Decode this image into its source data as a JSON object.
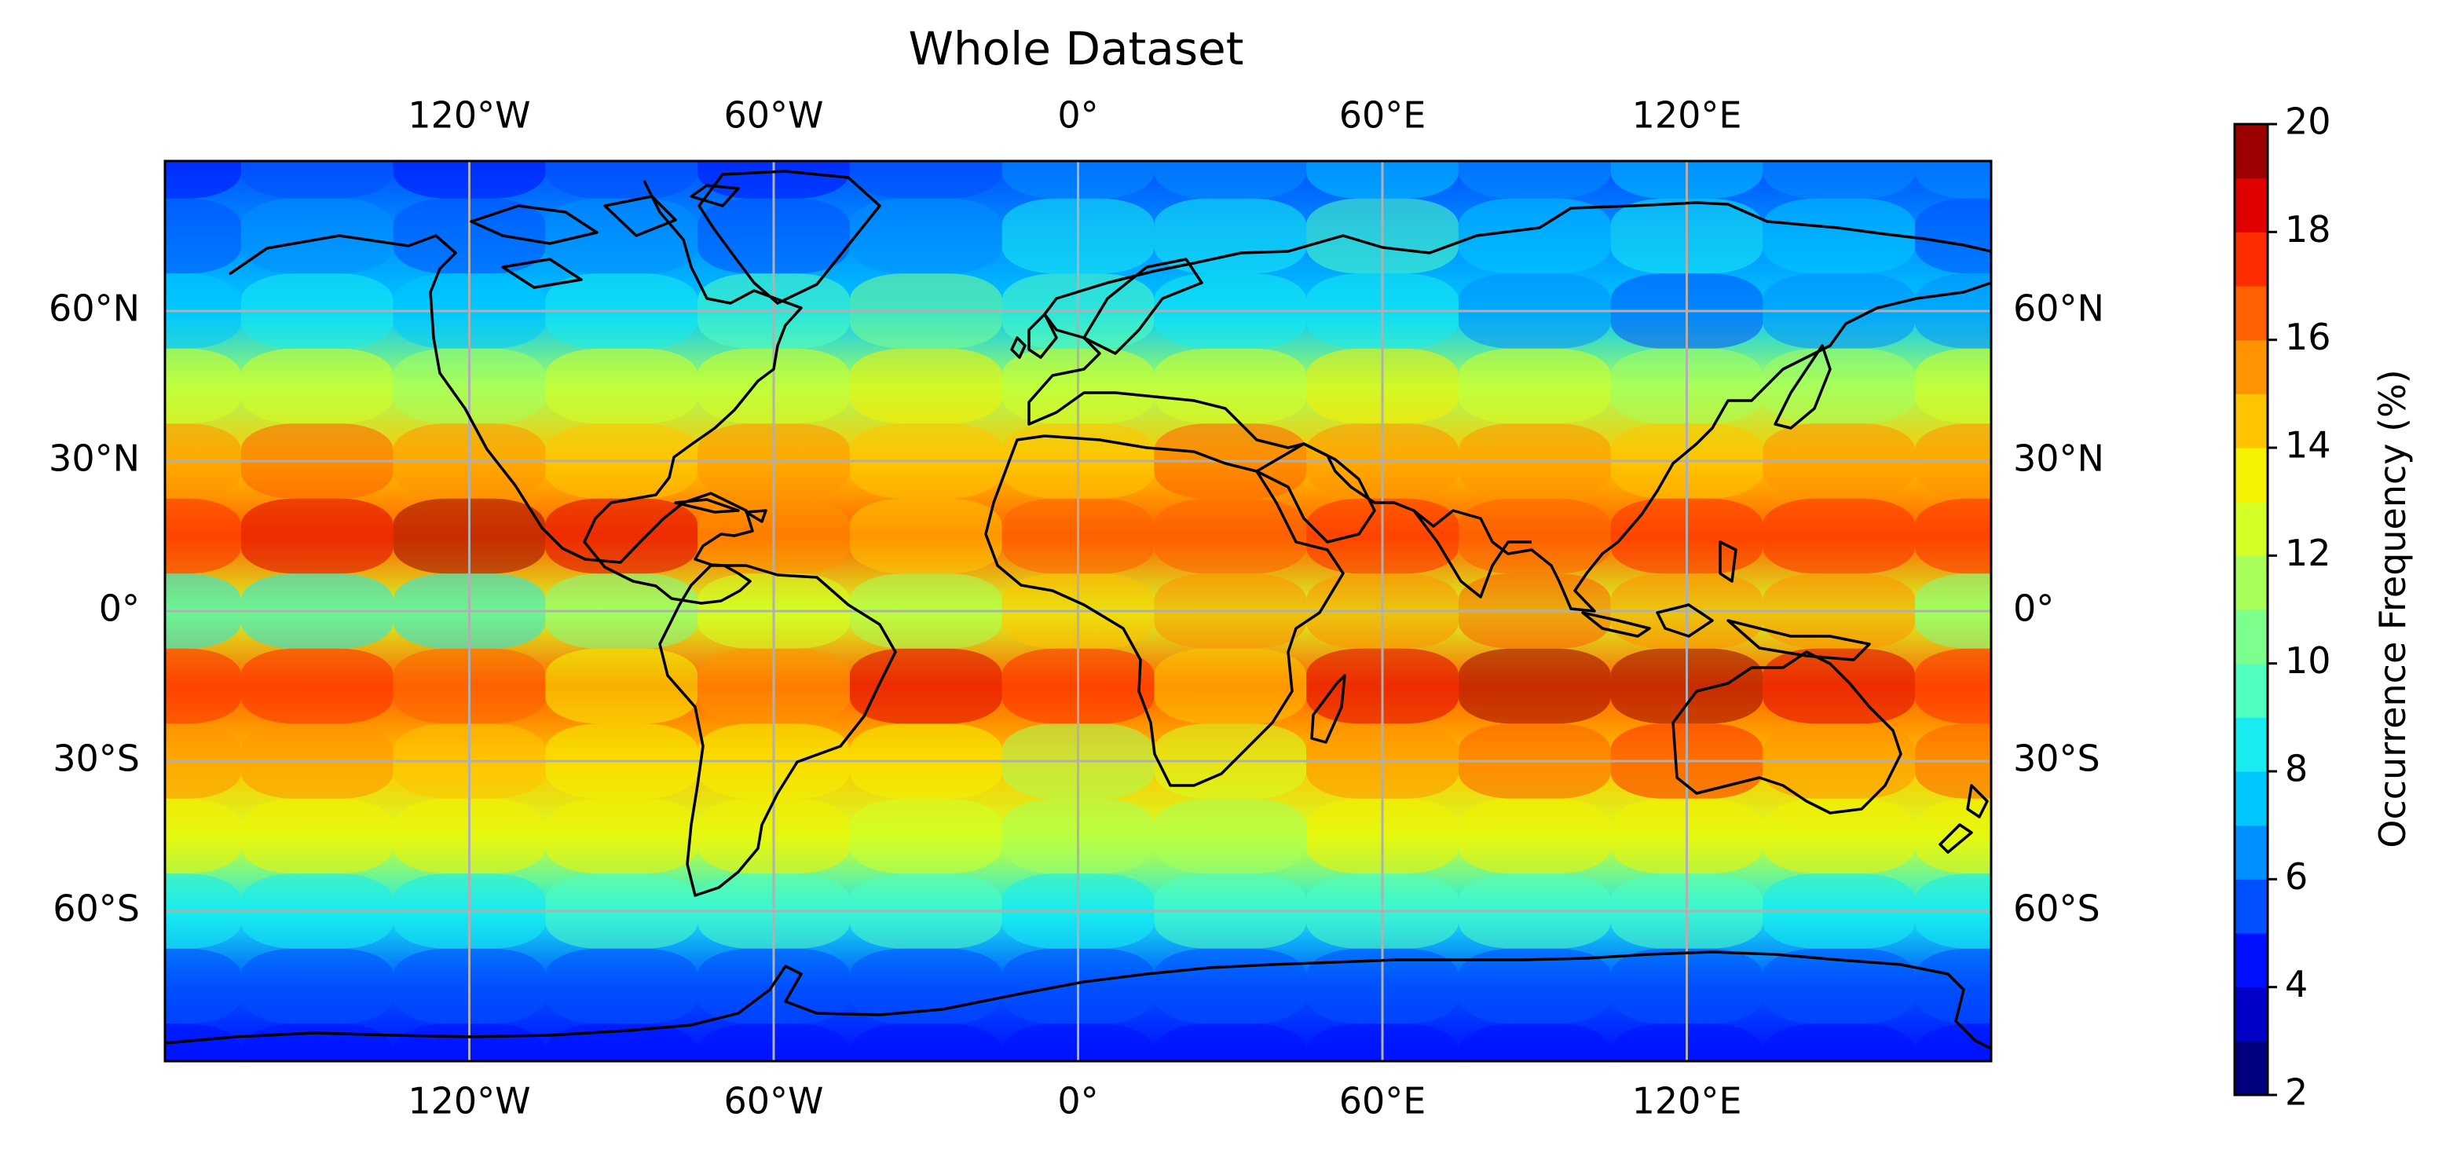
{
  "title": "Whole Dataset",
  "map": {
    "projection": "equirectangular",
    "lon_range": [
      -180,
      180
    ],
    "lat_range": [
      -90,
      90
    ],
    "gridlines": true,
    "gridline_color": "#b0b0b0",
    "coastline_color": "#000000"
  },
  "x_ticks": [
    {
      "value": -120,
      "label": "120°W"
    },
    {
      "value": -60,
      "label": "60°W"
    },
    {
      "value": 0,
      "label": "0°"
    },
    {
      "value": 60,
      "label": "60°E"
    },
    {
      "value": 120,
      "label": "120°E"
    }
  ],
  "y_ticks": [
    {
      "value": 60,
      "label": "60°N"
    },
    {
      "value": 30,
      "label": "30°N"
    },
    {
      "value": 0,
      "label": "0°"
    },
    {
      "value": -30,
      "label": "30°S"
    },
    {
      "value": -60,
      "label": "60°S"
    }
  ],
  "colorbar": {
    "label": "Occurrence Frequency (%)",
    "ticks": [
      "2",
      "4",
      "6",
      "8",
      "10",
      "12",
      "14",
      "16",
      "18",
      "20"
    ],
    "range": [
      2,
      20
    ],
    "levels": [
      {
        "from": 2,
        "to": 3,
        "color": "#00007f"
      },
      {
        "from": 3,
        "to": 4,
        "color": "#0000c8"
      },
      {
        "from": 4,
        "to": 5,
        "color": "#0010ff"
      },
      {
        "from": 5,
        "to": 6,
        "color": "#0050ff"
      },
      {
        "from": 6,
        "to": 7,
        "color": "#0090ff"
      },
      {
        "from": 7,
        "to": 8,
        "color": "#00c8ff"
      },
      {
        "from": 8,
        "to": 9,
        "color": "#18ecf0"
      },
      {
        "from": 9,
        "to": 10,
        "color": "#50ffc0"
      },
      {
        "from": 10,
        "to": 11,
        "color": "#7cff8c"
      },
      {
        "from": 11,
        "to": 12,
        "color": "#a8ff5a"
      },
      {
        "from": 12,
        "to": 13,
        "color": "#d4ff24"
      },
      {
        "from": 13,
        "to": 14,
        "color": "#f4f200"
      },
      {
        "from": 14,
        "to": 15,
        "color": "#ffc400"
      },
      {
        "from": 15,
        "to": 16,
        "color": "#ff9400"
      },
      {
        "from": 16,
        "to": 17,
        "color": "#ff6000"
      },
      {
        "from": 17,
        "to": 18,
        "color": "#ff2c00"
      },
      {
        "from": 18,
        "to": 19,
        "color": "#e00000"
      },
      {
        "from": 19,
        "to": 20,
        "color": "#9c0000"
      }
    ]
  },
  "chart_data": {
    "type": "heatmap",
    "title": "Whole Dataset",
    "x": [
      -180,
      -150,
      -120,
      -90,
      -60,
      -30,
      0,
      30,
      60,
      90,
      120,
      150,
      180
    ],
    "y": [
      90,
      75,
      60,
      45,
      30,
      15,
      0,
      -15,
      -30,
      -45,
      -60,
      -75,
      -90
    ],
    "z": [
      [
        4,
        5,
        4,
        5,
        4,
        5,
        6,
        6,
        7,
        6,
        7,
        6,
        6
      ],
      [
        5,
        6,
        5,
        6,
        5,
        6,
        8,
        8,
        9,
        7,
        8,
        7,
        5
      ],
      [
        7,
        8,
        7,
        8,
        9,
        10,
        9,
        8,
        8,
        6,
        5,
        6,
        6
      ],
      [
        12,
        12,
        11,
        12,
        12,
        13,
        12,
        12,
        13,
        12,
        11,
        11,
        12
      ],
      [
        15,
        16,
        15,
        14,
        15,
        14,
        14,
        16,
        15,
        15,
        14,
        15,
        15
      ],
      [
        17,
        18,
        19,
        18,
        15,
        14,
        16,
        16,
        17,
        16,
        17,
        17,
        17
      ],
      [
        8,
        8,
        8,
        10,
        12,
        11,
        14,
        15,
        15,
        16,
        15,
        15,
        10
      ],
      [
        17,
        17,
        16,
        13,
        15,
        18,
        17,
        14,
        18,
        19,
        19,
        18,
        17
      ],
      [
        15,
        15,
        14,
        13,
        13,
        13,
        11,
        12,
        15,
        16,
        17,
        15,
        16
      ],
      [
        13,
        13,
        13,
        13,
        13,
        12,
        11,
        11,
        13,
        13,
        13,
        13,
        13
      ],
      [
        8,
        8,
        8,
        9,
        9,
        9,
        8,
        9,
        9,
        9,
        9,
        8,
        8
      ],
      [
        5,
        5,
        5,
        5,
        5,
        5,
        5,
        5,
        5,
        5,
        5,
        5,
        5
      ],
      [
        4,
        4,
        4,
        4,
        4,
        4,
        4,
        4,
        4,
        4,
        4,
        4,
        4
      ]
    ],
    "colorbar_label": "Occurrence Frequency (%)",
    "zlim": [
      2,
      20
    ],
    "xlabel": "",
    "ylabel": ""
  }
}
